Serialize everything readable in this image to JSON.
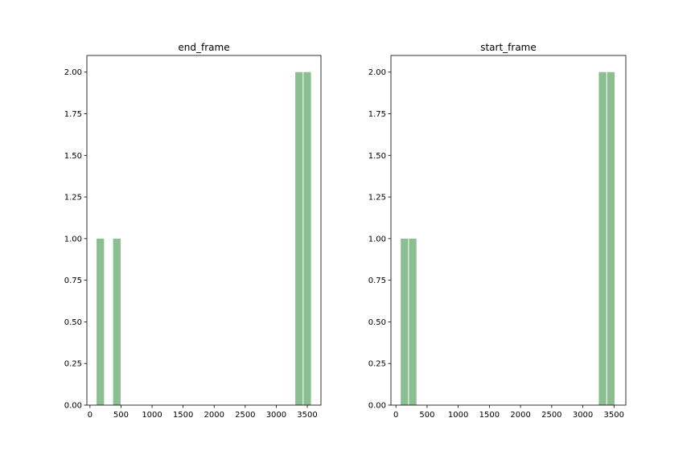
{
  "chart_data": [
    {
      "type": "bar",
      "title": "end_frame",
      "xlabel": "",
      "ylabel": "",
      "xlim": [
        -50,
        3720
      ],
      "ylim": [
        0,
        2.1
      ],
      "xticks": [
        0,
        500,
        1000,
        1500,
        2000,
        2500,
        3000,
        3500
      ],
      "xtick_labels": [
        "0",
        "500",
        "1000",
        "1500",
        "2000",
        "2500",
        "3000",
        "3500"
      ],
      "yticks": [
        0,
        0.25,
        0.5,
        0.75,
        1.0,
        1.25,
        1.5,
        1.75,
        2.0
      ],
      "ytick_labels": [
        "0.00",
        "0.25",
        "0.50",
        "0.75",
        "1.00",
        "1.25",
        "1.50",
        "1.75",
        "2.00"
      ],
      "bins": [
        {
          "x0": 100,
          "x1": 233,
          "count": 1
        },
        {
          "x0": 233,
          "x1": 366,
          "count": 0
        },
        {
          "x0": 366,
          "x1": 500,
          "count": 1
        },
        {
          "x0": 3300,
          "x1": 3433,
          "count": 2
        },
        {
          "x0": 3433,
          "x1": 3566,
          "count": 2
        }
      ],
      "bar_color": "#8bbf92"
    },
    {
      "type": "bar",
      "title": "start_frame",
      "xlabel": "",
      "ylabel": "",
      "xlim": [
        -80,
        3690
      ],
      "ylim": [
        0,
        2.1
      ],
      "xticks": [
        0,
        500,
        1000,
        1500,
        2000,
        2500,
        3000,
        3500
      ],
      "xtick_labels": [
        "0",
        "500",
        "1000",
        "1500",
        "2000",
        "2500",
        "3000",
        "3500"
      ],
      "yticks": [
        0,
        0.25,
        0.5,
        0.75,
        1.0,
        1.25,
        1.5,
        1.75,
        2.0
      ],
      "ytick_labels": [
        "0.00",
        "0.25",
        "0.50",
        "0.75",
        "1.00",
        "1.25",
        "1.50",
        "1.75",
        "2.00"
      ],
      "bins": [
        {
          "x0": 70,
          "x1": 203,
          "count": 1
        },
        {
          "x0": 203,
          "x1": 336,
          "count": 1
        },
        {
          "x0": 3250,
          "x1": 3383,
          "count": 2
        },
        {
          "x0": 3383,
          "x1": 3516,
          "count": 2
        }
      ],
      "bar_color": "#8bbf92"
    }
  ]
}
